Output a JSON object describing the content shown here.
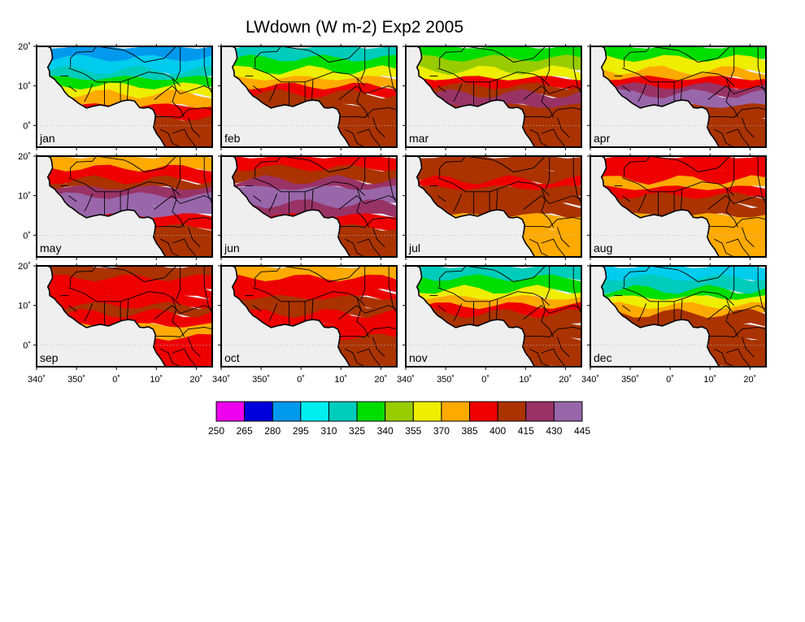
{
  "title": "LWdown (W m-2) Exp2 2005",
  "panels": [
    {
      "label": "jan"
    },
    {
      "label": "feb"
    },
    {
      "label": "mar"
    },
    {
      "label": "apr"
    },
    {
      "label": "may"
    },
    {
      "label": "jun"
    },
    {
      "label": "jul"
    },
    {
      "label": "aug"
    },
    {
      "label": "sep"
    },
    {
      "label": "oct"
    },
    {
      "label": "nov"
    },
    {
      "label": "dec"
    }
  ],
  "lat_ticks": [
    "20˚",
    "10˚",
    "0˚"
  ],
  "lon_ticks": [
    "340˚",
    "350˚",
    "0˚",
    "10˚",
    "20˚"
  ],
  "colorbar": {
    "labels": [
      "250",
      "265",
      "280",
      "295",
      "310",
      "325",
      "340",
      "355",
      "370",
      "385",
      "400",
      "415",
      "430",
      "445"
    ],
    "colors": [
      "#ee00ee",
      "#0000dd",
      "#0099ee",
      "#00eeee",
      "#00ccbb",
      "#00dd00",
      "#99cc00",
      "#eeee00",
      "#ffaa00",
      "#ee0000",
      "#aa3300",
      "#993366",
      "#9966aa"
    ]
  },
  "panel_zones": [
    [
      [
        "#0099ee",
        "#00ccee",
        "#00ccbb",
        "#00dd00",
        "#eeee00",
        "#ffaa00",
        "#ee0000",
        "#aa3300"
      ]
    ],
    [
      [
        "#00ccbb",
        "#00dd00",
        "#eeee00",
        "#ffaa00",
        "#ee0000",
        "#aa3300",
        "#aa3300",
        "#aa3300"
      ]
    ],
    [
      [
        "#00dd00",
        "#99cc00",
        "#eeee00",
        "#ee0000",
        "#aa3300",
        "#993366",
        "#aa3300",
        "#aa3300"
      ]
    ],
    [
      [
        "#00dd00",
        "#eeee00",
        "#ffaa00",
        "#ee0000",
        "#993366",
        "#9966aa",
        "#aa3300",
        "#aa3300"
      ]
    ],
    [
      [
        "#ffaa00",
        "#ee0000",
        "#aa3300",
        "#993366",
        "#9966aa",
        "#9966aa",
        "#ee0000",
        "#aa3300"
      ]
    ],
    [
      [
        "#ee0000",
        "#aa3300",
        "#993366",
        "#9966aa",
        "#9966aa",
        "#993366",
        "#ee0000",
        "#aa3300"
      ]
    ],
    [
      [
        "#aa3300",
        "#aa3300",
        "#ee0000",
        "#aa3300",
        "#aa3300",
        "#aa3300",
        "#ffaa00",
        "#ffaa00"
      ]
    ],
    [
      [
        "#ee0000",
        "#ee0000",
        "#ffaa00",
        "#ee0000",
        "#aa3300",
        "#aa3300",
        "#ffaa00",
        "#ffaa00"
      ]
    ],
    [
      [
        "#aa3300",
        "#ee0000",
        "#ee0000",
        "#ee0000",
        "#aa3300",
        "#ee0000",
        "#ffaa00",
        "#ee0000"
      ]
    ],
    [
      [
        "#ffaa00",
        "#ee0000",
        "#ee0000",
        "#aa3300",
        "#aa3300",
        "#ee0000",
        "#ee0000",
        "#aa3300"
      ]
    ],
    [
      [
        "#00ccbb",
        "#00dd00",
        "#eeee00",
        "#ffaa00",
        "#ee0000",
        "#aa3300",
        "#aa3300",
        "#aa3300"
      ]
    ],
    [
      [
        "#00ccee",
        "#00ccbb",
        "#00dd00",
        "#eeee00",
        "#ffaa00",
        "#aa3300",
        "#aa3300",
        "#aa3300"
      ]
    ]
  ]
}
